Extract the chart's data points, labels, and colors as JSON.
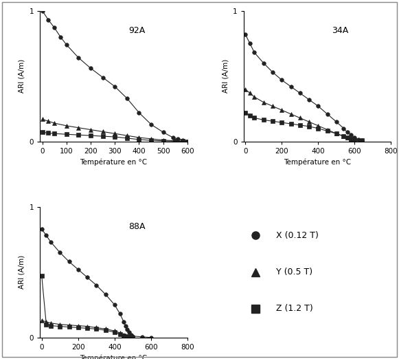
{
  "plots": [
    {
      "label": "92A",
      "xlim": [
        -10,
        600
      ],
      "ylim": [
        0,
        1
      ],
      "xticks": [
        0,
        100,
        200,
        300,
        400,
        500,
        600
      ],
      "yticks": [
        0,
        1
      ],
      "X": {
        "temps": [
          0,
          25,
          50,
          75,
          100,
          150,
          200,
          250,
          300,
          350,
          400,
          450,
          500,
          540,
          560,
          580,
          600
        ],
        "vals": [
          1.0,
          0.93,
          0.87,
          0.8,
          0.74,
          0.64,
          0.56,
          0.49,
          0.42,
          0.33,
          0.22,
          0.13,
          0.07,
          0.03,
          0.02,
          0.01,
          0.0
        ]
      },
      "Y": {
        "temps": [
          0,
          25,
          50,
          100,
          150,
          200,
          250,
          300,
          350,
          400,
          450,
          500,
          550,
          580,
          600
        ],
        "vals": [
          0.17,
          0.155,
          0.14,
          0.12,
          0.105,
          0.09,
          0.075,
          0.06,
          0.045,
          0.03,
          0.02,
          0.01,
          0.005,
          0.002,
          0.0
        ]
      },
      "Z": {
        "temps": [
          0,
          25,
          50,
          100,
          150,
          200,
          250,
          300,
          350,
          400,
          450,
          500,
          550,
          580,
          600
        ],
        "vals": [
          0.07,
          0.065,
          0.06,
          0.055,
          0.05,
          0.045,
          0.04,
          0.035,
          0.025,
          0.015,
          0.008,
          0.004,
          0.002,
          0.001,
          0.0
        ]
      }
    },
    {
      "label": "34A",
      "xlim": [
        -10,
        800
      ],
      "ylim": [
        0,
        1
      ],
      "xticks": [
        0,
        200,
        400,
        600,
        800
      ],
      "yticks": [
        0,
        1
      ],
      "X": {
        "temps": [
          0,
          25,
          50,
          100,
          150,
          200,
          250,
          300,
          350,
          400,
          450,
          500,
          540,
          560,
          580,
          600,
          620,
          640
        ],
        "vals": [
          0.82,
          0.75,
          0.68,
          0.6,
          0.53,
          0.47,
          0.42,
          0.37,
          0.32,
          0.27,
          0.21,
          0.15,
          0.1,
          0.07,
          0.05,
          0.03,
          0.015,
          0.01
        ]
      },
      "Y": {
        "temps": [
          0,
          25,
          50,
          100,
          150,
          200,
          250,
          300,
          350,
          400,
          450,
          500,
          540,
          560,
          580,
          600,
          640
        ],
        "vals": [
          0.4,
          0.37,
          0.34,
          0.3,
          0.27,
          0.24,
          0.21,
          0.18,
          0.15,
          0.12,
          0.09,
          0.06,
          0.04,
          0.03,
          0.02,
          0.01,
          0.01
        ]
      },
      "Z": {
        "temps": [
          0,
          25,
          50,
          100,
          150,
          200,
          250,
          300,
          350,
          400,
          450,
          500,
          540,
          560,
          580,
          600,
          640
        ],
        "vals": [
          0.22,
          0.2,
          0.18,
          0.165,
          0.155,
          0.145,
          0.135,
          0.125,
          0.115,
          0.1,
          0.08,
          0.06,
          0.04,
          0.03,
          0.02,
          0.01,
          0.01
        ]
      }
    },
    {
      "label": "88A",
      "xlim": [
        -10,
        800
      ],
      "ylim": [
        0,
        1
      ],
      "xticks": [
        0,
        200,
        400,
        600,
        800
      ],
      "yticks": [
        0,
        1
      ],
      "X": {
        "temps": [
          0,
          25,
          50,
          100,
          150,
          200,
          250,
          300,
          350,
          400,
          430,
          450,
          460,
          470,
          480,
          490,
          500,
          550,
          600
        ],
        "vals": [
          0.83,
          0.78,
          0.73,
          0.65,
          0.58,
          0.52,
          0.46,
          0.4,
          0.33,
          0.25,
          0.18,
          0.12,
          0.09,
          0.06,
          0.04,
          0.02,
          0.01,
          0.005,
          0.0
        ]
      },
      "Y": {
        "temps": [
          0,
          25,
          50,
          100,
          150,
          200,
          250,
          300,
          350,
          400,
          430,
          450,
          470,
          490,
          500
        ],
        "vals": [
          0.13,
          0.12,
          0.11,
          0.1,
          0.095,
          0.09,
          0.085,
          0.075,
          0.065,
          0.05,
          0.035,
          0.02,
          0.01,
          0.005,
          0.0
        ]
      },
      "Z": {
        "temps": [
          0,
          25,
          50,
          100,
          150,
          200,
          250,
          300,
          350,
          400,
          430,
          450,
          470,
          490,
          500
        ],
        "vals": [
          0.47,
          0.1,
          0.09,
          0.085,
          0.08,
          0.075,
          0.07,
          0.065,
          0.055,
          0.04,
          0.025,
          0.015,
          0.008,
          0.003,
          0.0
        ]
      }
    }
  ],
  "legend": {
    "X_label": "X (0.12 T)",
    "Y_label": "Y (0.5 T)",
    "Z_label": "Z (1.2 T)"
  },
  "xlabel": "Température en °C",
  "ylabel": "ARI (A/m)",
  "line_color": "#222222",
  "marker_X": "o",
  "marker_Y": "^",
  "marker_Z": "s",
  "marker_size": 4,
  "figure_border_color": "#aaaaaa"
}
